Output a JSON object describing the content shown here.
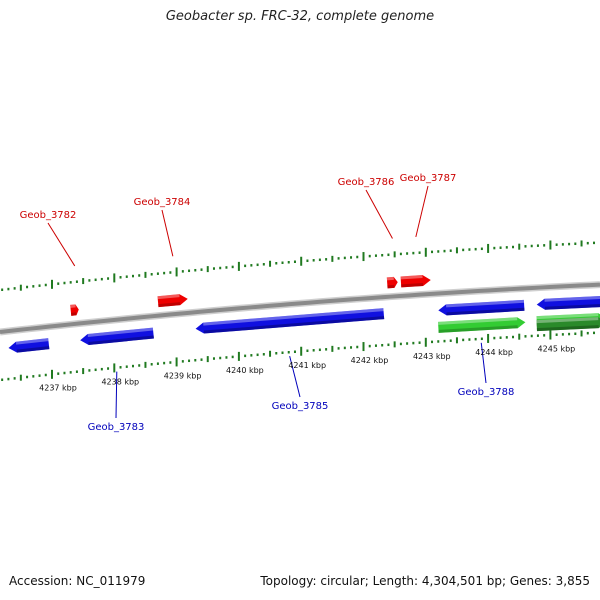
{
  "title": "Geobacter sp. FRC-32, complete genome",
  "footer": {
    "accession": "Accession: NC_011979",
    "summary": "Topology: circular; Length: 4,304,501 bp; Genes: 3,855"
  },
  "colors": {
    "backbone": "#8a8a8a",
    "forward_gene": "#ee0000",
    "reverse_gene": "#1010e0",
    "rna_gene": "#33cc33",
    "other_gene": "#2a8a2a",
    "tick": "#207a20",
    "forward_label": "#cc0000",
    "reverse_label": "#0000bb"
  },
  "ruler": {
    "unit": "kbp",
    "labels": [
      {
        "text": "4237 kbp",
        "kbp": 4237
      },
      {
        "text": "4238 kbp",
        "kbp": 4238
      },
      {
        "text": "4239 kbp",
        "kbp": 4239
      },
      {
        "text": "4240 kbp",
        "kbp": 4240
      },
      {
        "text": "4241 kbp",
        "kbp": 4241
      },
      {
        "text": "4242 kbp",
        "kbp": 4242
      },
      {
        "text": "4243 kbp",
        "kbp": 4243
      },
      {
        "text": "4244 kbp",
        "kbp": 4244
      },
      {
        "text": "4245 kbp",
        "kbp": 4245
      }
    ]
  },
  "genes": [
    {
      "name": "Geob_3782",
      "strand": "forward",
      "type": "cds",
      "start_kbp": 4237.3,
      "end_kbp": 4237.43
    },
    {
      "name": "Geob_3783",
      "strand": "reverse",
      "type": "cds",
      "start_kbp": 4237.45,
      "end_kbp": 4238.63
    },
    {
      "name": "Geob_3784",
      "strand": "forward",
      "type": "cds",
      "start_kbp": 4238.7,
      "end_kbp": 4239.18
    },
    {
      "name": "Geob_3785",
      "strand": "reverse",
      "type": "cds",
      "start_kbp": 4239.3,
      "end_kbp": 4242.33
    },
    {
      "name": "Geob_3786",
      "strand": "forward",
      "type": "cds",
      "start_kbp": 4242.38,
      "end_kbp": 4242.55
    },
    {
      "name": "Geob_3787",
      "strand": "forward",
      "type": "cds",
      "start_kbp": 4242.6,
      "end_kbp": 4243.08
    },
    {
      "name": "Geob_3788",
      "strand": "reverse",
      "type": "cds",
      "start_kbp": 4243.2,
      "end_kbp": 4244.58
    },
    {
      "name": "",
      "strand": "reverse",
      "type": "rna",
      "start_kbp": 4243.2,
      "end_kbp": 4244.6
    },
    {
      "name": "",
      "strand": "reverse",
      "type": "cds",
      "start_kbp": 4244.78,
      "end_kbp": 4245.9
    },
    {
      "name": "",
      "strand": "reverse",
      "type": "rna",
      "start_kbp": 4244.78,
      "end_kbp": 4245.9
    },
    {
      "name": "",
      "strand": "reverse",
      "type": "other",
      "start_kbp": 4244.78,
      "end_kbp": 4245.9
    },
    {
      "name": "",
      "strand": "reverse",
      "type": "cds",
      "start_kbp": 4236.3,
      "end_kbp": 4236.95
    }
  ]
}
